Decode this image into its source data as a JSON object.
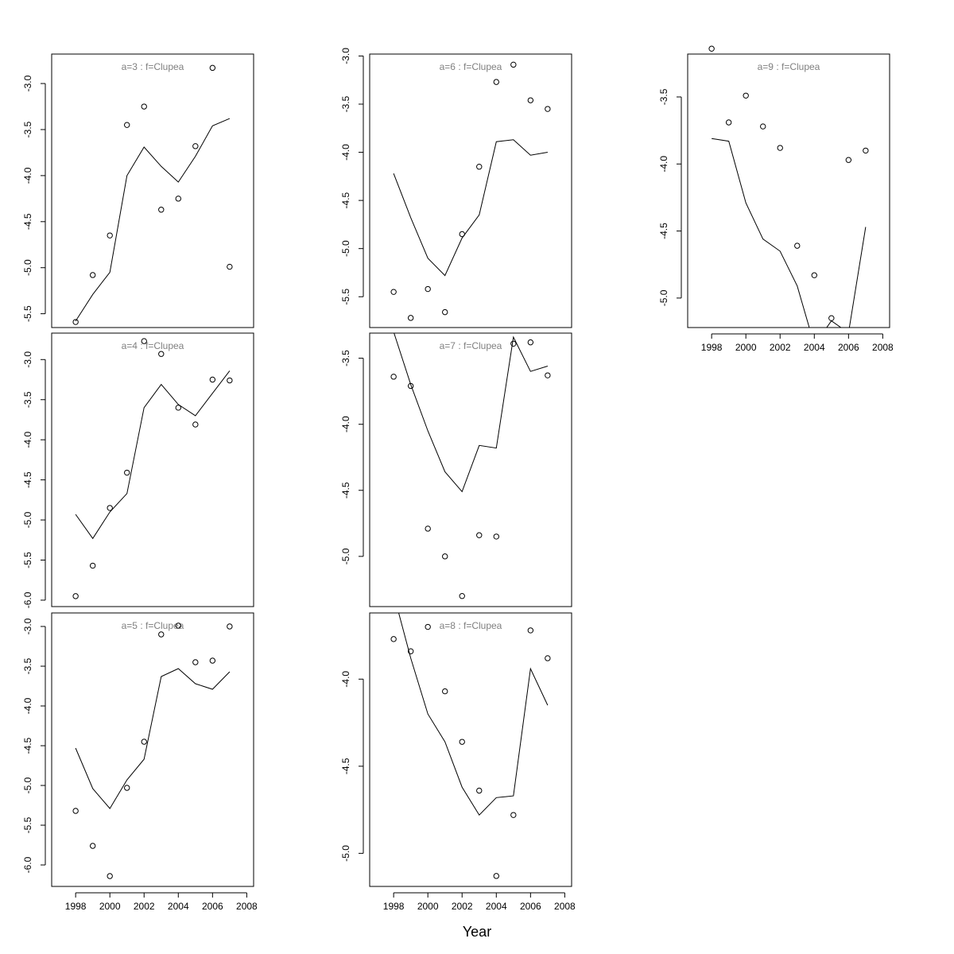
{
  "chart_data": {
    "type": "scatter",
    "xlabel": "Year",
    "x": [
      1998,
      1999,
      2000,
      2001,
      2002,
      2003,
      2004,
      2005,
      2006,
      2007
    ],
    "xlim": [
      1996.6,
      2008.4
    ],
    "xticks": [
      1998,
      2000,
      2002,
      2004,
      2006,
      2008
    ],
    "grid": false,
    "panels": [
      {
        "title": "a=3  :  f=Clupea",
        "ylim": [
          -5.65,
          -2.68
        ],
        "yticks": [
          -5.5,
          -5.0,
          -4.5,
          -4.0,
          -3.5,
          -3.0
        ],
        "points": [
          -5.59,
          -5.08,
          -4.65,
          -3.45,
          -3.25,
          -4.37,
          -4.25,
          -3.68,
          -2.83,
          -4.99
        ],
        "line": [
          -5.58,
          -5.29,
          -5.05,
          -4.0,
          -3.69,
          -3.9,
          -4.07,
          -3.79,
          -3.46,
          -3.38
        ]
      },
      {
        "title": "a=4  :  f=Clupea",
        "ylim": [
          -6.08,
          -2.67
        ],
        "yticks": [
          -6.0,
          -5.5,
          -5.0,
          -4.5,
          -4.0,
          -3.5,
          -3.0
        ],
        "points": [
          -5.95,
          -5.57,
          -4.85,
          -4.41,
          -2.77,
          -2.93,
          -3.6,
          -3.81,
          -3.25,
          -3.26
        ],
        "line": [
          -4.93,
          -5.23,
          -4.9,
          -4.67,
          -3.6,
          -3.31,
          -3.56,
          -3.7,
          -3.42,
          -3.14
        ]
      },
      {
        "title": "a=5  :  f=Clupea",
        "ylim": [
          -6.27,
          -2.83
        ],
        "yticks": [
          -6.0,
          -5.5,
          -5.0,
          -4.5,
          -4.0,
          -3.5,
          -3.0
        ],
        "points": [
          -5.32,
          -5.76,
          -6.14,
          -5.03,
          -4.45,
          -3.1,
          -2.99,
          -3.45,
          -3.43,
          -3.0
        ],
        "line": [
          -4.53,
          -5.04,
          -5.29,
          -4.93,
          -4.67,
          -3.63,
          -3.53,
          -3.72,
          -3.79,
          -3.57
        ]
      },
      {
        "title": "a=6  :  f=Clupea",
        "ylim": [
          -5.82,
          -2.98
        ],
        "yticks": [
          -5.5,
          -5.0,
          -4.5,
          -4.0,
          -3.5,
          -3.0
        ],
        "points": [
          -5.45,
          -5.72,
          -5.42,
          -5.66,
          -4.85,
          -4.15,
          -3.27,
          -3.09,
          -3.46,
          -3.55
        ],
        "line": [
          -4.22,
          -4.68,
          -5.1,
          -5.28,
          -4.89,
          -4.65,
          -3.89,
          -3.87,
          -4.03,
          -4.0
        ]
      },
      {
        "title": "a=7  :  f=Clupea",
        "ylim": [
          -5.38,
          -3.31
        ],
        "yticks": [
          -5.0,
          -4.5,
          -4.0,
          -3.5
        ],
        "points": [
          -3.64,
          -3.71,
          -4.79,
          -5.0,
          -5.3,
          -4.84,
          -4.85,
          -3.39,
          -3.38,
          -3.63
        ],
        "line": [
          -3.3,
          -3.7,
          -4.05,
          -4.36,
          -4.51,
          -4.16,
          -4.18,
          -3.34,
          -3.6,
          -3.56
        ]
      },
      {
        "title": "a=8  :  f=Clupea",
        "ylim": [
          -5.19,
          -3.62
        ],
        "yticks": [
          -5.0,
          -4.5,
          -4.0
        ],
        "points": [
          -3.77,
          -3.84,
          -3.7,
          -4.07,
          -4.36,
          -4.64,
          -5.13,
          -4.78,
          -3.72,
          -3.88
        ],
        "line": [
          -3.51,
          -3.88,
          -4.2,
          -4.36,
          -4.62,
          -4.78,
          -4.68,
          -4.67,
          -3.94,
          -4.15
        ]
      },
      {
        "title": "a=9  :  f=Clupea",
        "ylim": [
          -5.22,
          -3.18
        ],
        "yticks": [
          -5.0,
          -4.5,
          -4.0,
          -3.5
        ],
        "points": [
          -3.14,
          -3.69,
          -3.49,
          -3.72,
          -3.88,
          -4.61,
          -4.83,
          -5.15,
          -3.97,
          -3.9
        ],
        "line": [
          -3.81,
          -3.83,
          -4.29,
          -4.56,
          -4.65,
          -4.91,
          -5.35,
          -5.17,
          -5.26,
          -4.47
        ]
      }
    ]
  }
}
